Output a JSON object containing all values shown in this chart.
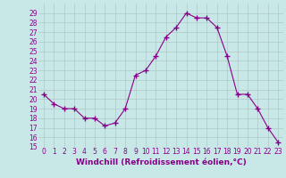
{
  "x": [
    0,
    1,
    2,
    3,
    4,
    5,
    6,
    7,
    8,
    9,
    10,
    11,
    12,
    13,
    14,
    15,
    16,
    17,
    18,
    19,
    20,
    21,
    22,
    23
  ],
  "y": [
    20.5,
    19.5,
    19.0,
    19.0,
    18.0,
    18.0,
    17.2,
    17.5,
    19.0,
    22.5,
    23.0,
    24.5,
    26.5,
    27.5,
    29.0,
    28.5,
    28.5,
    27.5,
    24.5,
    20.5,
    20.5,
    19.0,
    17.0,
    15.5
  ],
  "line_color": "#880088",
  "marker": "+",
  "marker_size": 4,
  "bg_color": "#c8e8e8",
  "grid_color": "#b0c8c8",
  "xlabel": "Windchill (Refroidissement éolien,°C)",
  "xlabel_color": "#880088",
  "xlabel_fontsize": 6.5,
  "tick_color": "#880088",
  "tick_fontsize": 5.5,
  "ylim": [
    15,
    30
  ],
  "xlim": [
    -0.5,
    23.5
  ],
  "yticks": [
    15,
    16,
    17,
    18,
    19,
    20,
    21,
    22,
    23,
    24,
    25,
    26,
    27,
    28,
    29
  ],
  "xticks": [
    0,
    1,
    2,
    3,
    4,
    5,
    6,
    7,
    8,
    9,
    10,
    11,
    12,
    13,
    14,
    15,
    16,
    17,
    18,
    19,
    20,
    21,
    22,
    23
  ]
}
